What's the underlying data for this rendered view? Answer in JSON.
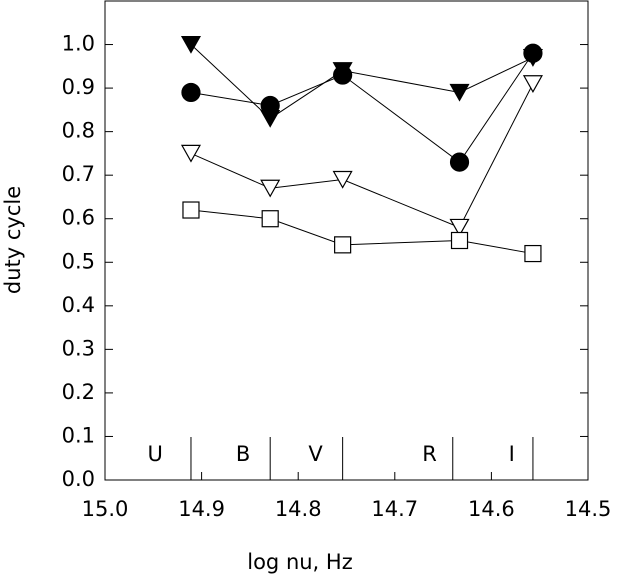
{
  "chart_data": {
    "type": "line",
    "xlabel": "log nu, Hz",
    "ylabel": "duty cycle",
    "xlim": [
      15.0,
      14.5
    ],
    "ylim": [
      0,
      1.1
    ],
    "xticks": [
      {
        "value": 15,
        "label": "15.0"
      },
      14.9,
      14.8,
      14.7,
      14.6,
      14.5
    ],
    "yticks": [
      {
        "value": 0,
        "label": "0.0"
      },
      0.1,
      0.2,
      0.3,
      0.4,
      0.5,
      0.6,
      0.7,
      0.8,
      0.9,
      {
        "value": 1,
        "label": "1.0"
      }
    ],
    "x": [
      14.911,
      14.829,
      14.754,
      14.633,
      14.557
    ],
    "series": [
      {
        "color": "#000000",
        "marker": "triangle-down",
        "filled": true,
        "values": [
          1.0,
          0.83,
          0.94,
          0.89,
          0.97
        ]
      },
      {
        "color": "#000000",
        "marker": "circle",
        "filled": true,
        "values": [
          0.89,
          0.86,
          0.93,
          0.73,
          0.98
        ]
      },
      {
        "color": "#000000",
        "marker": "triangle-down",
        "filled": false,
        "values": [
          0.75,
          0.67,
          0.69,
          0.58,
          0.91
        ]
      },
      {
        "color": "#000000",
        "marker": "square",
        "filled": false,
        "values": [
          0.62,
          0.6,
          0.54,
          0.55,
          0.52
        ]
      }
    ],
    "bands": [
      {
        "label": "U",
        "x": 14.948
      },
      {
        "label": "B",
        "x": 14.857
      },
      {
        "label": "V",
        "x": 14.782
      },
      {
        "label": "R",
        "x": 14.664
      },
      {
        "label": "I",
        "x": 14.579
      }
    ],
    "band_edges": [
      14.911,
      14.829,
      14.754,
      14.64,
      14.557
    ]
  }
}
